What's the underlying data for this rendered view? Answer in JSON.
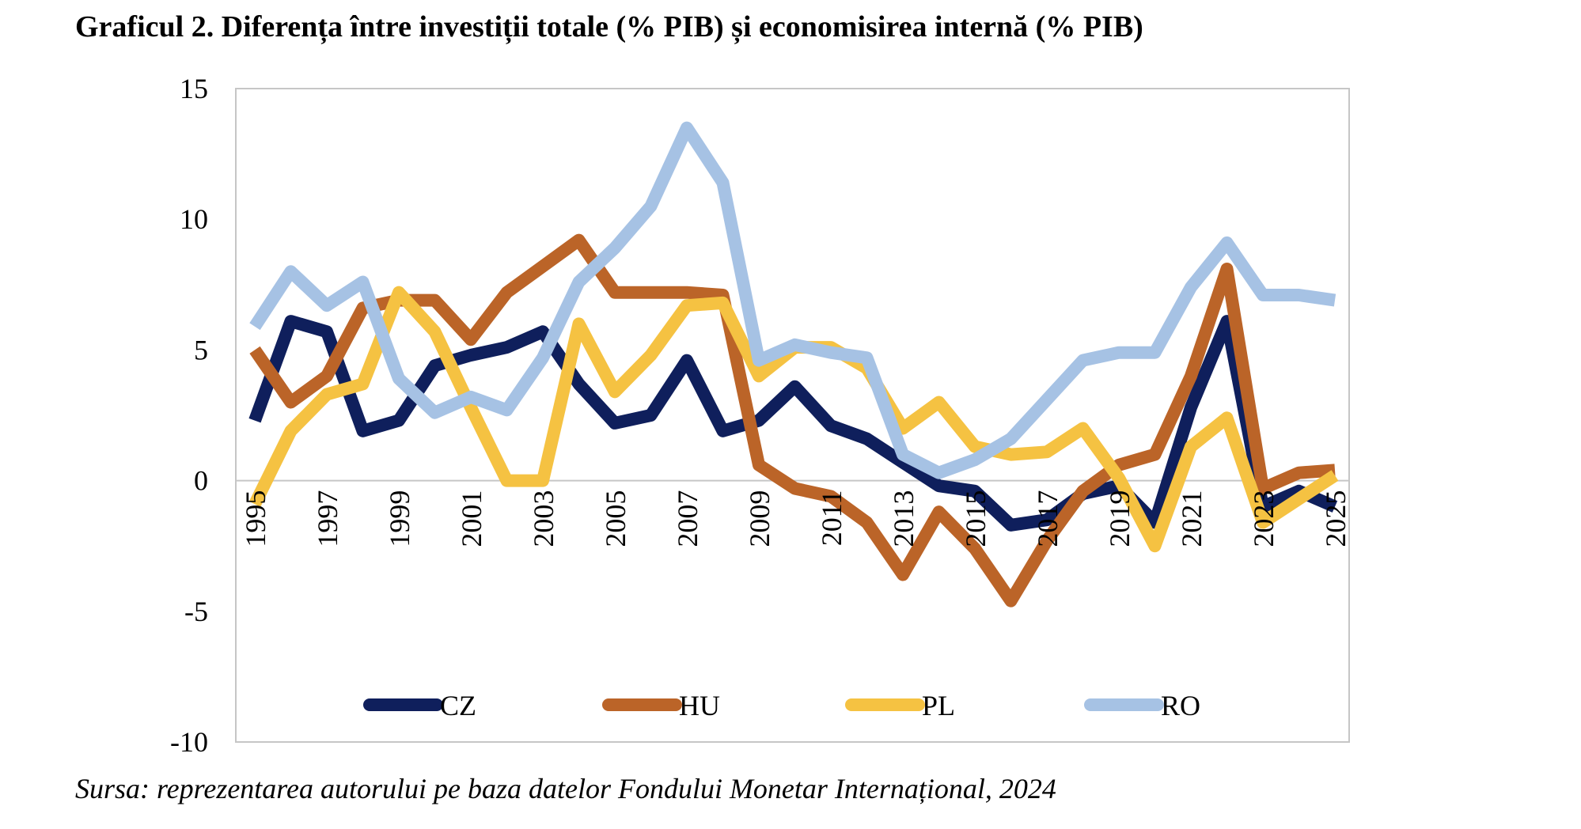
{
  "title": "Graficul 2. Diferența între investiții totale (% PIB) și economisirea internă (% PIB)",
  "source": "Sursa: reprezentarea autorului pe baza datelor Fondului Monetar Internațional, 2024",
  "chart_data": {
    "type": "line",
    "x": [
      1995,
      1996,
      1997,
      1998,
      1999,
      2000,
      2001,
      2002,
      2003,
      2004,
      2005,
      2006,
      2007,
      2008,
      2009,
      2010,
      2011,
      2012,
      2013,
      2014,
      2015,
      2016,
      2017,
      2018,
      2019,
      2020,
      2021,
      2022,
      2023,
      2024,
      2025
    ],
    "x_tick_labels": [
      "1995",
      "1997",
      "1999",
      "2001",
      "2003",
      "2005",
      "2007",
      "2009",
      "2011",
      "2013",
      "2015",
      "2017",
      "2019",
      "2021",
      "2023",
      "2025"
    ],
    "y_tick_labels": [
      "15",
      "10",
      "5",
      "0",
      "-5",
      "-10"
    ],
    "ylim": [
      -10,
      15
    ],
    "y_ticks": [
      15,
      10,
      5,
      0,
      -5,
      -10
    ],
    "grid": false,
    "legend_position": "bottom",
    "series": [
      {
        "name": "CZ",
        "color": "#0f1f5c",
        "values": [
          2.3,
          6.1,
          5.7,
          1.9,
          2.3,
          4.4,
          4.8,
          5.1,
          5.7,
          3.7,
          2.2,
          2.5,
          4.6,
          1.9,
          2.3,
          3.6,
          2.1,
          1.6,
          0.7,
          -0.2,
          -0.4,
          -1.7,
          -1.5,
          -0.5,
          -0.2,
          -1.6,
          2.8,
          6.1,
          -1.0,
          -0.4,
          -1.0
        ]
      },
      {
        "name": "HU",
        "color": "#bb6428",
        "values": [
          5.0,
          3.0,
          4.0,
          6.6,
          6.9,
          6.9,
          5.4,
          7.2,
          8.2,
          9.2,
          7.2,
          7.2,
          7.2,
          7.1,
          0.6,
          -0.3,
          -0.6,
          -1.6,
          -3.6,
          -1.2,
          -2.6,
          -4.6,
          -2.3,
          -0.4,
          0.6,
          1.0,
          4.0,
          8.1,
          -0.3,
          0.3,
          0.4
        ]
      },
      {
        "name": "PL",
        "color": "#f5c242",
        "values": [
          -0.9,
          1.9,
          3.3,
          3.7,
          7.2,
          5.7,
          2.8,
          0.0,
          0.0,
          6.0,
          3.4,
          4.8,
          6.7,
          6.8,
          4.0,
          5.1,
          5.1,
          4.3,
          2.0,
          3.0,
          1.3,
          1.0,
          1.1,
          2.0,
          0.1,
          -2.5,
          1.3,
          2.4,
          -1.6,
          -0.7,
          0.2
        ]
      },
      {
        "name": "RO",
        "color": "#a6c2e4",
        "values": [
          5.9,
          8.0,
          6.7,
          7.6,
          3.9,
          2.6,
          3.2,
          2.7,
          4.7,
          7.6,
          8.9,
          10.5,
          13.5,
          11.4,
          4.6,
          5.2,
          4.9,
          4.7,
          1.0,
          0.3,
          0.8,
          1.6,
          3.1,
          4.6,
          4.9,
          4.9,
          7.4,
          9.1,
          7.1,
          7.1,
          6.9
        ]
      }
    ]
  }
}
